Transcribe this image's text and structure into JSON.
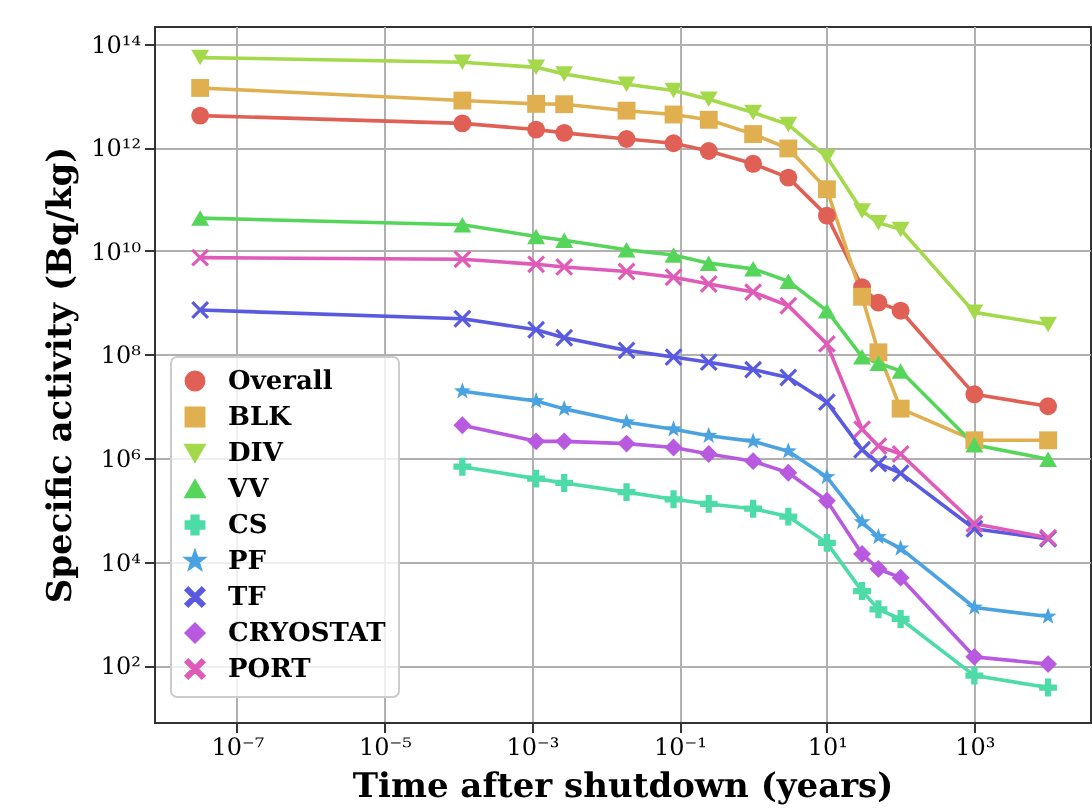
{
  "chart_data": {
    "type": "line",
    "xlabel": "Time after shutdown (years)",
    "ylabel": "Specific activity (Bq/kg)",
    "log": "xy",
    "grid": true,
    "legend": "bottom left",
    "x": [
      3.17e-08,
      0.000114,
      0.00114,
      0.00274,
      0.0192,
      0.0833,
      0.25,
      1,
      3,
      10,
      30,
      50,
      100,
      1000,
      10000
    ],
    "xlim": [
      7.5e-09,
      37000.0
    ],
    "ylim": [
      8,
      220000000000000.0
    ],
    "xticks": [
      {
        "value": 1e-07,
        "label": "10⁻⁷"
      },
      {
        "value": 1e-05,
        "label": "10⁻⁵"
      },
      {
        "value": 0.001,
        "label": "10⁻³"
      },
      {
        "value": 0.1,
        "label": "10⁻¹"
      },
      {
        "value": 10,
        "label": "10¹"
      },
      {
        "value": 1000,
        "label": "10³"
      }
    ],
    "yticks": [
      {
        "value": 100,
        "label": "10²"
      },
      {
        "value": 10000,
        "label": "10⁴"
      },
      {
        "value": 1000000.0,
        "label": "10⁶"
      },
      {
        "value": 100000000.0,
        "label": "10⁸"
      },
      {
        "value": 10000000000.0,
        "label": "10¹⁰"
      },
      {
        "value": 1000000000000.0,
        "label": "10¹²"
      },
      {
        "value": 100000000000000.0,
        "label": "10¹⁴"
      }
    ],
    "series": [
      {
        "name": "Overall",
        "color": "#e06055",
        "marker": "circle",
        "values": [
          4100000000000.0,
          2900000000000.0,
          2200000000000.0,
          1900000000000.0,
          1450000000000.0,
          1200000000000.0,
          850000000000.0,
          480000000000.0,
          260000000000.0,
          48000000000.0,
          2000000000.0,
          1000000000.0,
          700000000.0,
          17000000.0,
          10000000.0
        ]
      },
      {
        "name": "BLK",
        "color": "#e0b050",
        "marker": "square",
        "values": [
          14000000000000.0,
          8000000000000.0,
          6900000000000.0,
          6800000000000.0,
          5100000000000.0,
          4300000000000.0,
          3400000000000.0,
          1800000000000.0,
          950000000000.0,
          155000000000.0,
          1300000000.0,
          110000000.0,
          9000000.0,
          2200000.0,
          2200000.0
        ]
      },
      {
        "name": "DIV",
        "color": "#a3d94a",
        "marker": "triangle-down",
        "values": [
          54000000000000.0,
          44000000000000.0,
          35000000000000.0,
          26000000000000.0,
          16500000000000.0,
          12500000000000.0,
          8500000000000.0,
          4700000000000.0,
          2750000000000.0,
          650000000000.0,
          59000000000.0,
          35000000000.0,
          26000000000.0,
          650000000.0,
          380000000.0
        ]
      },
      {
        "name": "VV",
        "color": "#55d65a",
        "marker": "triangle",
        "values": [
          43000000000.0,
          32000000000.0,
          19000000000.0,
          16000000000.0,
          10500000000.0,
          8300000000.0,
          5800000000.0,
          4500000000.0,
          2600000000.0,
          700000000.0,
          90000000.0,
          68000000.0,
          48000000.0,
          1800000.0,
          950000.0
        ]
      },
      {
        "name": "CS",
        "color": "#4ddba8",
        "marker": "cross",
        "values": [
          null,
          680000.0,
          400000.0,
          330000.0,
          220000.0,
          160000.0,
          130000.0,
          105000.0,
          74000.0,
          23000.0,
          2700.0,
          1200.0,
          780.0,
          63,
          37
        ]
      },
      {
        "name": "PF",
        "color": "#4aa3e0",
        "marker": "star",
        "values": [
          null,
          19500000.0,
          12600000.0,
          8900000.0,
          4900000.0,
          3600000.0,
          2700000.0,
          2100000.0,
          1350000.0,
          430000.0,
          58000.0,
          30000.0,
          18000.0,
          1300.0,
          870.0
        ]
      },
      {
        "name": "TF",
        "color": "#5a5ae0",
        "marker": "x",
        "values": [
          720000000.0,
          490000000.0,
          300000000.0,
          210000000.0,
          120000000.0,
          89000000.0,
          71000000.0,
          51000000.0,
          36000000.0,
          12000000.0,
          1450000.0,
          780000.0,
          510000.0,
          43000.0,
          27500.0
        ]
      },
      {
        "name": "CRYOSTAT",
        "color": "#b85ae0",
        "marker": "diamond",
        "values": [
          null,
          4300000.0,
          2100000.0,
          2100000.0,
          1900000.0,
          1600000.0,
          1200000.0,
          870000.0,
          520000.0,
          150000.0,
          14000.0,
          7200.0,
          4900.0,
          145,
          105
        ]
      },
      {
        "name": "PORT",
        "color": "#e05ab8",
        "marker": "x",
        "values": [
          7400000000.0,
          6900000000.0,
          5500000000.0,
          4900000000.0,
          4000000000.0,
          3100000000.0,
          2300000000.0,
          1600000000.0,
          870000000.0,
          160000000.0,
          3600000.0,
          1700000.0,
          1200000.0,
          54000.0,
          29000.0
        ]
      }
    ]
  }
}
